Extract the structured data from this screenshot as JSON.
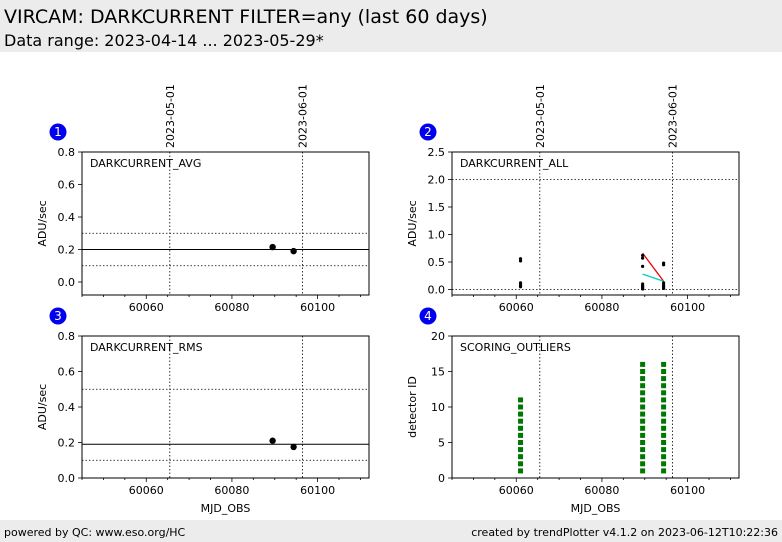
{
  "header": {
    "title": "VIRCAM: DARKCURRENT FILTER=any (last 60 days)",
    "subtitle": "Data range: 2023-04-14 ... 2023-05-29*"
  },
  "footer": {
    "left": "powered by QC: www.eso.org/HC",
    "right": "created by trendPlotter v4.1.2 on 2023-06-12T10:22:36"
  },
  "colors": {
    "badge": "#0000ee",
    "marker": "#000000",
    "fit_red": "#ee0000",
    "fit_cyan": "#00cccc",
    "outlier": "#007700"
  },
  "chart_data": [
    {
      "id": 1,
      "badge": "1",
      "type": "scatter",
      "title": "DARKCURRENT_AVG",
      "xlabel": "",
      "ylabel": "ADU/sec",
      "xlim": [
        60045,
        60112
      ],
      "ylim": [
        -0.08,
        0.8
      ],
      "xticks": [
        60060,
        60080,
        60100
      ],
      "yticks": [
        "0.0",
        "0.2",
        "0.4",
        "0.6",
        "0.8"
      ],
      "date_markers": [
        {
          "x": 60065.5,
          "label": "2023-05-01"
        },
        {
          "x": 60096.5,
          "label": "2023-06-01"
        }
      ],
      "hlines": [
        {
          "y": 0.2,
          "style": "solid"
        },
        {
          "y": 0.3,
          "style": "dotted"
        },
        {
          "y": 0.1,
          "style": "dotted"
        }
      ],
      "points": [
        {
          "x": 60089.5,
          "y": 0.215
        },
        {
          "x": 60094.4,
          "y": 0.19
        }
      ]
    },
    {
      "id": 2,
      "badge": "2",
      "type": "scatter",
      "title": "DARKCURRENT_ALL",
      "xlabel": "",
      "ylabel": "ADU/sec",
      "xlim": [
        60045,
        60112
      ],
      "ylim": [
        -0.1,
        2.5
      ],
      "xticks": [
        60060,
        60080,
        60100
      ],
      "yticks": [
        "0.0",
        "0.5",
        "1.0",
        "1.5",
        "2.0",
        "2.5"
      ],
      "date_markers": [
        {
          "x": 60065.5,
          "label": "2023-05-01"
        },
        {
          "x": 60096.5,
          "label": "2023-06-01"
        }
      ],
      "hlines": [
        {
          "y": 2.0,
          "style": "dotted"
        },
        {
          "y": 0.0,
          "style": "dotted"
        }
      ],
      "points": [
        {
          "x": 60061.0,
          "y": 0.56
        },
        {
          "x": 60061.0,
          "y": 0.52
        },
        {
          "x": 60061.0,
          "y": 0.12
        },
        {
          "x": 60061.0,
          "y": 0.08
        },
        {
          "x": 60061.0,
          "y": 0.05
        },
        {
          "x": 60089.5,
          "y": 0.62
        },
        {
          "x": 60089.5,
          "y": 0.57
        },
        {
          "x": 60089.5,
          "y": 0.42
        },
        {
          "x": 60089.5,
          "y": 0.1
        },
        {
          "x": 60089.5,
          "y": 0.07
        },
        {
          "x": 60089.5,
          "y": 0.05
        },
        {
          "x": 60089.5,
          "y": 0.03
        },
        {
          "x": 60089.5,
          "y": 0.01
        },
        {
          "x": 60094.4,
          "y": 0.48
        },
        {
          "x": 60094.4,
          "y": 0.45
        },
        {
          "x": 60094.4,
          "y": 0.12
        },
        {
          "x": 60094.4,
          "y": 0.08
        },
        {
          "x": 60094.4,
          "y": 0.05
        },
        {
          "x": 60094.4,
          "y": 0.02
        }
      ],
      "lines": [
        {
          "color": "#ee0000",
          "x": [
            60089.5,
            60094.4
          ],
          "y": [
            0.66,
            0.15
          ]
        },
        {
          "color": "#00cccc",
          "x": [
            60089.5,
            60094.4
          ],
          "y": [
            0.28,
            0.15
          ]
        }
      ]
    },
    {
      "id": 3,
      "badge": "3",
      "type": "scatter",
      "title": "DARKCURRENT_RMS",
      "xlabel": "MJD_OBS",
      "ylabel": "ADU/sec",
      "xlim": [
        60045,
        60112
      ],
      "ylim": [
        0,
        0.8
      ],
      "xticks": [
        60060,
        60080,
        60100
      ],
      "yticks": [
        "0.0",
        "0.2",
        "0.4",
        "0.6",
        "0.8"
      ],
      "date_markers": [
        {
          "x": 60065.5,
          "label": ""
        },
        {
          "x": 60096.5,
          "label": ""
        }
      ],
      "hlines": [
        {
          "y": 0.19,
          "style": "solid"
        },
        {
          "y": 0.5,
          "style": "dotted"
        },
        {
          "y": 0.1,
          "style": "dotted"
        }
      ],
      "points": [
        {
          "x": 60089.5,
          "y": 0.21
        },
        {
          "x": 60094.4,
          "y": 0.175
        }
      ]
    },
    {
      "id": 4,
      "badge": "4",
      "type": "scatter",
      "title": "SCORING_OUTLIERS",
      "xlabel": "MJD_OBS",
      "ylabel": "detector ID",
      "xlim": [
        60045,
        60112
      ],
      "ylim": [
        0,
        20
      ],
      "xticks": [
        60060,
        60080,
        60100
      ],
      "yticks": [
        "0",
        "5",
        "10",
        "15",
        "20"
      ],
      "date_markers": [
        {
          "x": 60065.5,
          "label": ""
        },
        {
          "x": 60096.5,
          "label": ""
        }
      ],
      "hlines": [],
      "outliers": [
        {
          "x": 60061.0,
          "ids": [
            1,
            2,
            3,
            4,
            5,
            6,
            7,
            8,
            9,
            10,
            11
          ]
        },
        {
          "x": 60089.5,
          "ids": [
            1,
            2,
            3,
            4,
            5,
            6,
            7,
            8,
            9,
            10,
            11,
            12,
            13,
            14,
            15,
            16
          ]
        },
        {
          "x": 60094.4,
          "ids": [
            1,
            2,
            3,
            4,
            5,
            6,
            7,
            8,
            9,
            10,
            11,
            12,
            13,
            14,
            15,
            16
          ]
        }
      ]
    }
  ]
}
